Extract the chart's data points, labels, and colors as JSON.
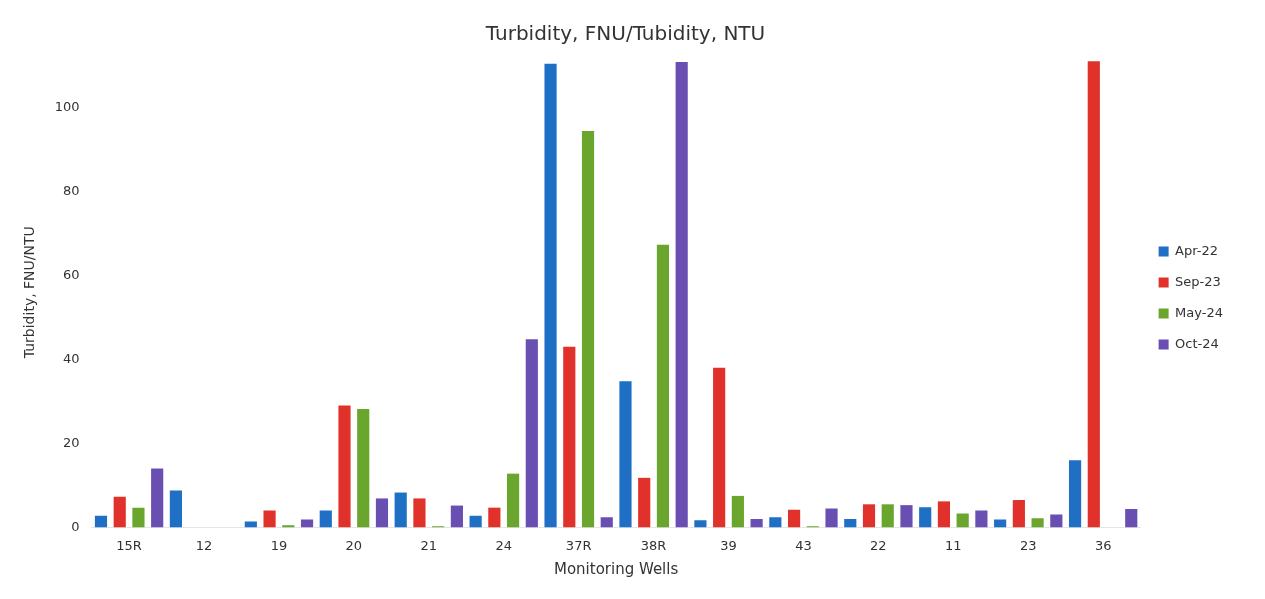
{
  "chart_data": {
    "type": "bar",
    "title": "Turbidity, FNU/Tubidity, NTU",
    "xlabel": "Monitoring Wells",
    "ylabel": "Turbidity, FNU/NTU",
    "categories": [
      "15R",
      "12",
      "19",
      "20",
      "21",
      "24",
      "37R",
      "38R",
      "39",
      "43",
      "22",
      "11",
      "23",
      "36"
    ],
    "ylim": [
      0,
      112
    ],
    "yticks": [
      0,
      20,
      40,
      60,
      80,
      100
    ],
    "legend": "right",
    "series": [
      {
        "name": "Apr-22",
        "color": "#1f6fc5",
        "values": [
          2.8,
          8.8,
          1.4,
          4,
          8.3,
          2.8,
          110.4,
          34.8,
          1.7,
          2.4,
          2,
          4.8,
          1.9,
          16
        ]
      },
      {
        "name": "Sep-23",
        "color": "#e0322a",
        "values": [
          7.3,
          null,
          4,
          29,
          6.9,
          4.7,
          43,
          11.8,
          38,
          4.2,
          5.5,
          6.2,
          6.5,
          111
        ]
      },
      {
        "name": "May-24",
        "color": "#6aa62e",
        "values": [
          4.7,
          null,
          0.5,
          28.2,
          0.3,
          12.8,
          94.4,
          67.3,
          7.5,
          0.3,
          5.5,
          3.3,
          2.2,
          null
        ]
      },
      {
        "name": "Oct-24",
        "color": "#6a4fb3",
        "values": [
          14,
          null,
          1.9,
          6.9,
          5.2,
          44.8,
          2.4,
          110.8,
          2,
          4.5,
          5.3,
          4,
          3.1,
          4.4
        ]
      }
    ]
  }
}
